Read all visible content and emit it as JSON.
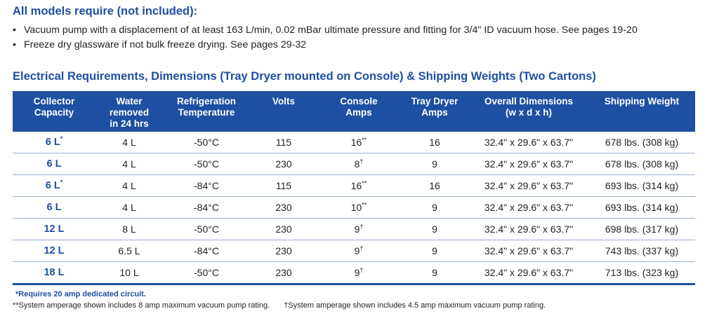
{
  "requirements": {
    "title": "All models require (not included):",
    "items": [
      "Vacuum pump with a displacement of at least 163 L/min, 0.02 mBar ultimate pressure and fitting for 3/4\" ID vacuum hose. See pages 19-20",
      "Freeze dry glassware if not bulk freeze drying. See pages 29-32"
    ]
  },
  "section_title": "Electrical Requirements, Dimensions (Tray Dryer mounted on Console) & Shipping Weights (Two Cartons)",
  "table": {
    "headers": [
      "Collector\nCapacity",
      "Water\nremoved\nin 24 hrs",
      "Refrigeration\nTemperature",
      "Volts",
      "Console\nAmps",
      "Tray Dryer\nAmps",
      "Overall Dimensions\n(w x d x h)",
      "Shipping Weight"
    ],
    "rows": [
      {
        "capacity": "6 L",
        "cap_mark": "*",
        "water": "4 L",
        "temp": "-50°C",
        "volts": "115",
        "console": "16",
        "console_mark": "**",
        "tray": "16",
        "dims": "32.4\" x 29.6\" x 63.7\"",
        "weight": "678 lbs. (308 kg)"
      },
      {
        "capacity": "6 L",
        "cap_mark": "",
        "water": "4 L",
        "temp": "-50°C",
        "volts": "230",
        "console": "8",
        "console_mark": "†",
        "tray": "9",
        "dims": "32.4\" x 29.6\" x 63.7\"",
        "weight": "678 lbs. (308 kg)"
      },
      {
        "capacity": "6 L",
        "cap_mark": "*",
        "water": "4 L",
        "temp": "-84°C",
        "volts": "115",
        "console": "16",
        "console_mark": "**",
        "tray": "16",
        "dims": "32.4\" x 29.6\" x 63.7\"",
        "weight": "693 lbs. (314 kg)"
      },
      {
        "capacity": "6 L",
        "cap_mark": "",
        "water": "4 L",
        "temp": "-84°C",
        "volts": "230",
        "console": "10",
        "console_mark": "**",
        "tray": "9",
        "dims": "32.4\" x 29.6\" x 63.7\"",
        "weight": "693 lbs. (314 kg)"
      },
      {
        "capacity": "12 L",
        "cap_mark": "",
        "water": "8 L",
        "temp": "-50°C",
        "volts": "230",
        "console": "9",
        "console_mark": "†",
        "tray": "9",
        "dims": "32.4\" x 29.6\" x 63.7\"",
        "weight": "698 lbs. (317 kg)"
      },
      {
        "capacity": "12 L",
        "cap_mark": "",
        "water": "6.5 L",
        "temp": "-84°C",
        "volts": "230",
        "console": "9",
        "console_mark": "†",
        "tray": "9",
        "dims": "32.4\" x 29.6\" x 63.7\"",
        "weight": "743 lbs. (337 kg)"
      },
      {
        "capacity": "18 L",
        "cap_mark": "",
        "water": "10 L",
        "temp": "-50°C",
        "volts": "230",
        "console": "9",
        "console_mark": "†",
        "tray": "9",
        "dims": "32.4\" x 29.6\" x 63.7\"",
        "weight": "713 lbs. (323 kg)"
      }
    ]
  },
  "footnotes": {
    "single_star": "*Requires 20 amp dedicated circuit.",
    "double_star": "**System amperage shown includes 8 amp maximum vacuum pump rating.",
    "dagger": "†System amperage shown includes 4.5 amp maximum vacuum pump rating."
  },
  "colors": {
    "accent": "#1e4fa1",
    "text": "#231f20",
    "row_divider": "#9aaed6"
  }
}
